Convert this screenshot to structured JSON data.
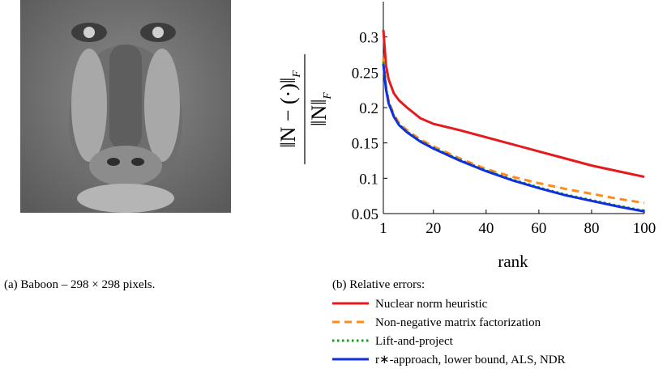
{
  "captions": {
    "a": "(a) Baboon – 298 × 298 pixels.",
    "b": "(b) Relative errors:"
  },
  "chart_data": {
    "type": "line",
    "x_label": "rank",
    "y_label": {
      "numerator": "‖N − (·)‖",
      "denominator": "‖N‖",
      "subscript": "F"
    },
    "x": [
      1,
      2,
      3,
      5,
      7,
      10,
      15,
      20,
      30,
      40,
      50,
      60,
      70,
      80,
      90,
      100
    ],
    "xlim": [
      1,
      100
    ],
    "xticks": [
      1,
      20,
      40,
      60,
      80,
      100
    ],
    "ylim": [
      0.05,
      0.35
    ],
    "yticks": [
      0.05,
      0.1,
      0.15,
      0.2,
      0.25,
      0.3
    ],
    "series": [
      {
        "name": "Nuclear norm heuristic",
        "color": "#e41a1c",
        "dash": "solid",
        "values": [
          0.31,
          0.26,
          0.24,
          0.22,
          0.21,
          0.2,
          0.185,
          0.177,
          0.168,
          0.158,
          0.148,
          0.138,
          0.128,
          0.118,
          0.11,
          0.102
        ]
      },
      {
        "name": "Non-negative matrix factorization",
        "color": "#ff8c1a",
        "dash": "dashed",
        "values": [
          0.27,
          0.23,
          0.21,
          0.19,
          0.178,
          0.168,
          0.155,
          0.145,
          0.128,
          0.113,
          0.102,
          0.093,
          0.085,
          0.078,
          0.071,
          0.065
        ]
      },
      {
        "name": "Lift-and-project",
        "color": "#1a9a1a",
        "dash": "dotted",
        "values": [
          0.265,
          0.228,
          0.208,
          0.188,
          0.176,
          0.166,
          0.153,
          0.143,
          0.126,
          0.111,
          0.098,
          0.087,
          0.077,
          0.069,
          0.061,
          0.054
        ]
      },
      {
        "name": "r∗-approach, lower bound, ALS, NDR",
        "color": "#1030e0",
        "dash": "solid",
        "values": [
          0.262,
          0.226,
          0.206,
          0.187,
          0.175,
          0.165,
          0.152,
          0.142,
          0.125,
          0.11,
          0.097,
          0.086,
          0.076,
          0.068,
          0.06,
          0.053
        ]
      }
    ]
  }
}
